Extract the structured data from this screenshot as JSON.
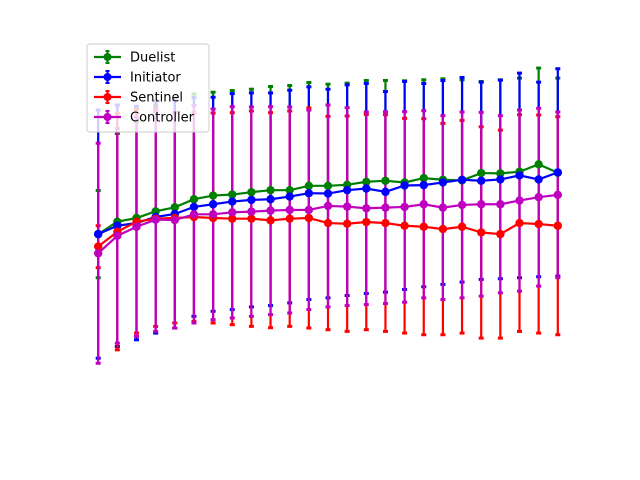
{
  "chart_data": {
    "type": "line",
    "title": "",
    "xlabel": "",
    "ylabel": "",
    "x": [
      1,
      2,
      3,
      4,
      5,
      6,
      7,
      8,
      9,
      10,
      11,
      12,
      13,
      14,
      15,
      16,
      17,
      18,
      19,
      20,
      21,
      22,
      23,
      24,
      25
    ],
    "xlim": [
      0.05,
      25.95
    ],
    "ylim": [
      -0.1,
      1.0
    ],
    "grid": false,
    "axes_visible": false,
    "legend_position": "upper-left",
    "series": [
      {
        "name": "Duelist",
        "color": "#008000",
        "values": [
          0.475,
          0.512,
          0.523,
          0.543,
          0.555,
          0.579,
          0.59,
          0.593,
          0.6,
          0.606,
          0.606,
          0.619,
          0.619,
          0.622,
          0.631,
          0.634,
          0.629,
          0.642,
          0.637,
          0.635,
          0.657,
          0.656,
          0.661,
          0.683,
          0.658
        ],
        "err_low": [
          0.345,
          0.512,
          0.523,
          0.543,
          0.555,
          0.579,
          0.59,
          0.593,
          0.6,
          0.606,
          0.606,
          0.619,
          0.619,
          0.622,
          0.631,
          0.634,
          0.629,
          0.642,
          0.637,
          0.635,
          0.657,
          0.656,
          0.661,
          0.683,
          0.658
        ],
        "err_high": [
          0.605,
          0.775,
          0.81,
          0.86,
          0.88,
          0.893,
          0.898,
          0.903,
          0.907,
          0.915,
          0.918,
          0.927,
          0.922,
          0.925,
          0.933,
          0.933,
          0.932,
          0.935,
          0.938,
          0.935,
          0.93,
          0.935,
          0.94,
          0.97,
          0.94
        ]
      },
      {
        "name": "Initiator",
        "color": "#0000ff",
        "values": [
          0.475,
          0.5,
          0.508,
          0.526,
          0.535,
          0.556,
          0.564,
          0.572,
          0.577,
          0.579,
          0.587,
          0.597,
          0.596,
          0.606,
          0.611,
          0.601,
          0.62,
          0.621,
          0.629,
          0.637,
          0.634,
          0.638,
          0.65,
          0.638,
          0.659
        ],
        "err_low": [
          0.105,
          0.14,
          0.16,
          0.18,
          0.195,
          0.23,
          0.245,
          0.25,
          0.258,
          0.262,
          0.27,
          0.28,
          0.285,
          0.292,
          0.298,
          0.302,
          0.31,
          0.318,
          0.325,
          0.332,
          0.34,
          0.342,
          0.345,
          0.348,
          0.35
        ],
        "err_high": [
          0.845,
          0.86,
          0.856,
          0.872,
          0.875,
          0.882,
          0.883,
          0.894,
          0.896,
          0.896,
          0.904,
          0.914,
          0.907,
          0.92,
          0.924,
          0.9,
          0.93,
          0.924,
          0.933,
          0.942,
          0.928,
          0.934,
          0.955,
          0.928,
          0.968
        ]
      },
      {
        "name": "Sentinel",
        "color": "#ff0000",
        "values": [
          0.438,
          0.482,
          0.512,
          0.521,
          0.523,
          0.526,
          0.523,
          0.521,
          0.521,
          0.516,
          0.521,
          0.523,
          0.508,
          0.506,
          0.511,
          0.508,
          0.5,
          0.497,
          0.49,
          0.497,
          0.48,
          0.475,
          0.508,
          0.505,
          0.5
        ],
        "err_low": [
          0.375,
          0.13,
          0.18,
          0.2,
          0.21,
          0.215,
          0.21,
          0.205,
          0.2,
          0.196,
          0.2,
          0.195,
          0.19,
          0.185,
          0.19,
          0.185,
          0.18,
          0.175,
          0.175,
          0.18,
          0.165,
          0.165,
          0.185,
          0.18,
          0.175
        ],
        "err_high": [
          0.5,
          0.835,
          0.846,
          0.842,
          0.836,
          0.837,
          0.836,
          0.837,
          0.842,
          0.837,
          0.842,
          0.851,
          0.826,
          0.827,
          0.832,
          0.831,
          0.82,
          0.819,
          0.805,
          0.814,
          0.795,
          0.785,
          0.831,
          0.83,
          0.825
        ]
      },
      {
        "name": "Controller",
        "color": "#bf00bf",
        "values": [
          0.418,
          0.47,
          0.497,
          0.518,
          0.517,
          0.534,
          0.534,
          0.54,
          0.542,
          0.545,
          0.547,
          0.547,
          0.559,
          0.557,
          0.552,
          0.554,
          0.556,
          0.564,
          0.554,
          0.562,
          0.564,
          0.564,
          0.575,
          0.585,
          0.592
        ],
        "err_low": [
          0.09,
          0.15,
          0.17,
          0.185,
          0.195,
          0.21,
          0.22,
          0.225,
          0.23,
          0.235,
          0.24,
          0.25,
          0.258,
          0.262,
          0.265,
          0.268,
          0.272,
          0.285,
          0.28,
          0.285,
          0.29,
          0.3,
          0.305,
          0.32,
          0.345
        ],
        "err_high": [
          0.746,
          0.79,
          0.824,
          0.851,
          0.839,
          0.858,
          0.848,
          0.855,
          0.854,
          0.855,
          0.854,
          0.845,
          0.86,
          0.852,
          0.839,
          0.84,
          0.84,
          0.843,
          0.828,
          0.839,
          0.838,
          0.828,
          0.845,
          0.85,
          0.839
        ]
      }
    ]
  }
}
